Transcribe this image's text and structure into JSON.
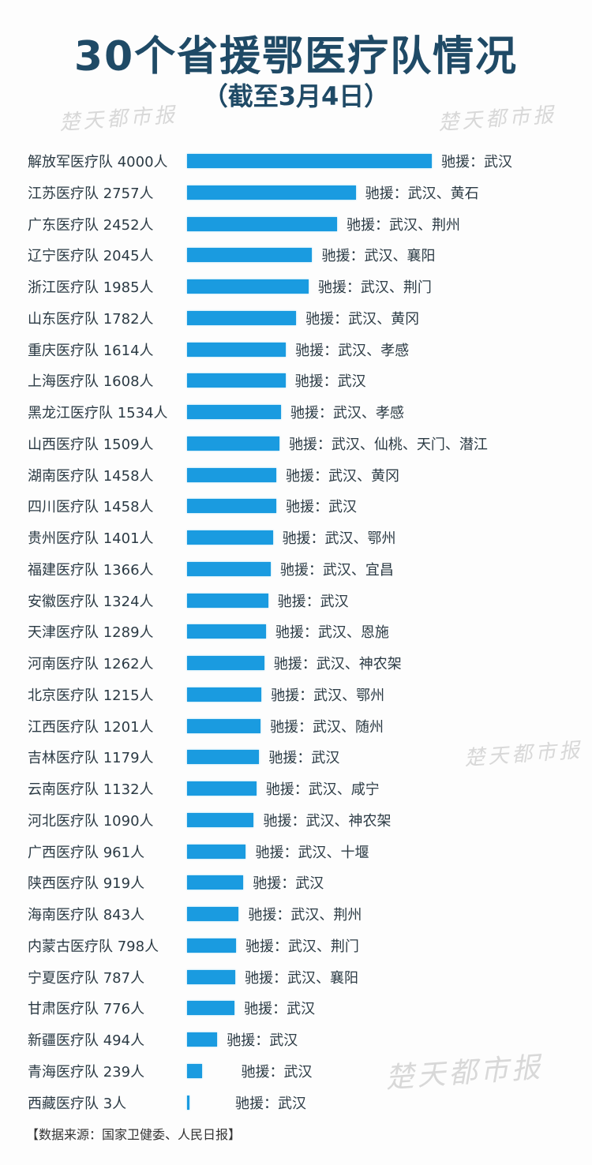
{
  "header": {
    "title": "30个省援鄂医疗队情况",
    "subtitle": "（截至3月4日）"
  },
  "watermark": "楚天都市报",
  "footer": {
    "source": "【数据来源：国家卫健委、人民日报】"
  },
  "colors": {
    "bar": "#1a9be0",
    "title": "#1f4a66",
    "text": "#2b3a44"
  },
  "rows": [
    {
      "label": "解放军医疗队 4000人",
      "dest": "驰援：武汉"
    },
    {
      "label": "江苏医疗队 2757人",
      "dest": "驰援：武汉、黄石"
    },
    {
      "label": "广东医疗队 2452人",
      "dest": "驰援：武汉、荆州"
    },
    {
      "label": "辽宁医疗队 2045人",
      "dest": "驰援：武汉、襄阳"
    },
    {
      "label": "浙江医疗队 1985人",
      "dest": "驰援：武汉、荆门"
    },
    {
      "label": "山东医疗队 1782人",
      "dest": "驰援：武汉、黄冈"
    },
    {
      "label": "重庆医疗队 1614人",
      "dest": "驰援：武汉、孝感"
    },
    {
      "label": "上海医疗队 1608人",
      "dest": "驰援：武汉"
    },
    {
      "label": "黑龙江医疗队 1534人",
      "dest": "驰援：武汉、孝感"
    },
    {
      "label": "山西医疗队 1509人",
      "dest": "驰援：武汉、仙桃、天门、潜江"
    },
    {
      "label": "湖南医疗队 1458人",
      "dest": "驰援：武汉、黄冈"
    },
    {
      "label": "四川医疗队 1458人",
      "dest": "驰援：武汉"
    },
    {
      "label": "贵州医疗队 1401人",
      "dest": "驰援：武汉、鄂州"
    },
    {
      "label": "福建医疗队 1366人",
      "dest": "驰援：武汉、宜昌"
    },
    {
      "label": "安徽医疗队 1324人",
      "dest": "驰援：武汉"
    },
    {
      "label": "天津医疗队 1289人",
      "dest": "驰援：武汉、恩施"
    },
    {
      "label": "河南医疗队 1262人",
      "dest": "驰援：武汉、神农架"
    },
    {
      "label": "北京医疗队 1215人",
      "dest": "驰援：武汉、鄂州"
    },
    {
      "label": "江西医疗队 1201人",
      "dest": "驰援：武汉、随州"
    },
    {
      "label": "吉林医疗队 1179人",
      "dest": "驰援：武汉"
    },
    {
      "label": "云南医疗队 1132人",
      "dest": "驰援：武汉、咸宁"
    },
    {
      "label": "河北医疗队 1090人",
      "dest": "驰援：武汉、神农架"
    },
    {
      "label": "广西医疗队 961人",
      "dest": "驰援：武汉、十堰"
    },
    {
      "label": "陕西医疗队 919人",
      "dest": "驰援：武汉"
    },
    {
      "label": "海南医疗队 843人",
      "dest": "驰援：武汉、荆州"
    },
    {
      "label": "内蒙古医疗队 798人",
      "dest": "驰援：武汉、荆门"
    },
    {
      "label": "宁夏医疗队 787人",
      "dest": "驰援：武汉、襄阳"
    },
    {
      "label": "甘肃医疗队 776人",
      "dest": "驰援：武汉"
    },
    {
      "label": "新疆医疗队 494人",
      "dest": "驰援：武汉"
    },
    {
      "label": "青海医疗队 239人",
      "dest": "驰援：武汉"
    },
    {
      "label": "西藏医疗队 3人",
      "dest": "驰援：武汉"
    }
  ],
  "chart_data": {
    "type": "bar",
    "orientation": "horizontal",
    "title": "30个省援鄂医疗队情况",
    "subtitle": "（截至3月4日）",
    "xlabel": "",
    "ylabel": "",
    "unit": "人",
    "grid": false,
    "legend": null,
    "categories": [
      "解放军",
      "江苏",
      "广东",
      "辽宁",
      "浙江",
      "山东",
      "重庆",
      "上海",
      "黑龙江",
      "山西",
      "湖南",
      "四川",
      "贵州",
      "福建",
      "安徽",
      "天津",
      "河南",
      "北京",
      "江西",
      "吉林",
      "云南",
      "河北",
      "广西",
      "陕西",
      "海南",
      "内蒙古",
      "宁夏",
      "甘肃",
      "新疆",
      "青海",
      "西藏"
    ],
    "values": [
      4000,
      2757,
      2452,
      2045,
      1985,
      1782,
      1614,
      1608,
      1534,
      1509,
      1458,
      1458,
      1401,
      1366,
      1324,
      1289,
      1262,
      1215,
      1201,
      1179,
      1132,
      1090,
      961,
      919,
      843,
      798,
      787,
      776,
      494,
      239,
      3
    ],
    "annotations": [
      "武汉",
      "武汉、黄石",
      "武汉、荆州",
      "武汉、襄阳",
      "武汉、荆门",
      "武汉、黄冈",
      "武汉、孝感",
      "武汉",
      "武汉、孝感",
      "武汉、仙桃、天门、潜江",
      "武汉、黄冈",
      "武汉",
      "武汉、鄂州",
      "武汉、宜昌",
      "武汉",
      "武汉、恩施",
      "武汉、神农架",
      "武汉、鄂州",
      "武汉、随州",
      "武汉",
      "武汉、咸宁",
      "武汉、神农架",
      "武汉、十堰",
      "武汉",
      "武汉、荆州",
      "武汉、荆门",
      "武汉、襄阳",
      "武汉",
      "武汉",
      "武汉",
      "武汉"
    ],
    "source": "国家卫健委、人民日报"
  }
}
